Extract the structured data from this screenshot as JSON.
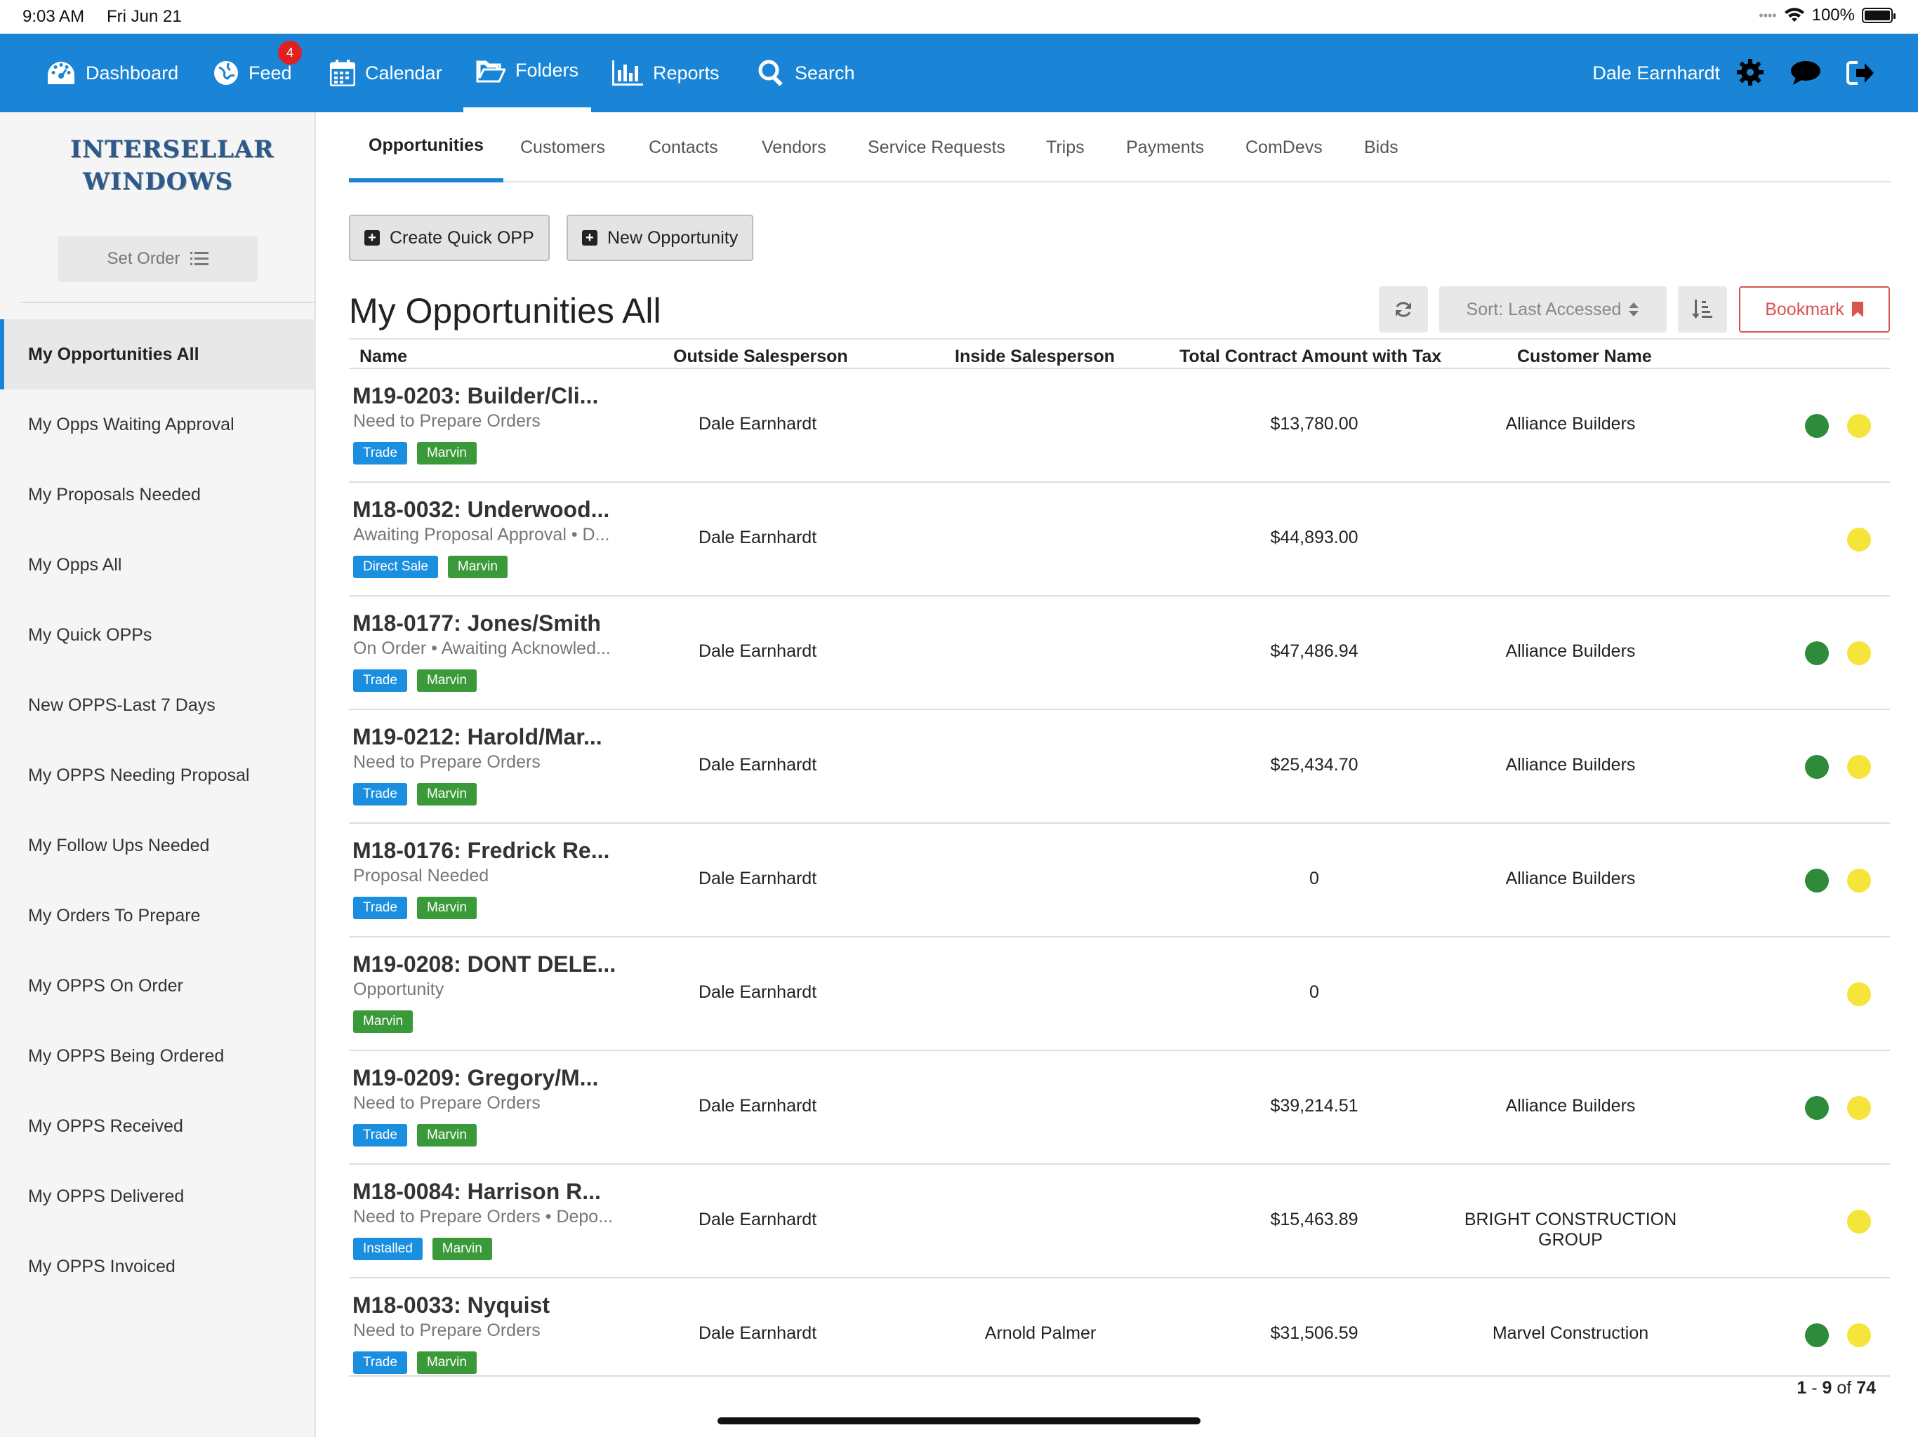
{
  "status_bar": {
    "time": "9:03 AM",
    "date": "Fri Jun 21",
    "battery": "100%"
  },
  "topnav": {
    "items": [
      {
        "label": "Dashboard",
        "icon": "dashboard-icon"
      },
      {
        "label": "Feed",
        "icon": "globe-icon",
        "badge": "4"
      },
      {
        "label": "Calendar",
        "icon": "calendar-icon"
      },
      {
        "label": "Folders",
        "icon": "folder-icon",
        "active": true
      },
      {
        "label": "Reports",
        "icon": "bar-chart-icon"
      },
      {
        "label": "Search",
        "icon": "search-icon"
      }
    ],
    "user_name": "Dale Earnhardt",
    "color": "#1a85d6"
  },
  "sidebar": {
    "logo_line1": "INTERSELLAR",
    "logo_line2": "WINDOWS",
    "set_order_label": "Set Order",
    "items": [
      "My Opportunities All",
      "My Opps Waiting Approval",
      "My Proposals Needed",
      "My Opps All",
      "My Quick OPPs",
      "New OPPS-Last 7 Days",
      "My OPPS Needing Proposal",
      "My Follow Ups Needed",
      "My Orders To Prepare",
      "My OPPS On Order",
      "My OPPS Being Ordered",
      "My OPPS Received",
      "My OPPS Delivered",
      "My OPPS Invoiced"
    ]
  },
  "tabs": [
    "Opportunities",
    "Customers",
    "Contacts",
    "Vendors",
    "Service Requests",
    "Trips",
    "Payments",
    "ComDevs",
    "Bids"
  ],
  "actions": {
    "create_quick": "Create Quick OPP",
    "new_opportunity": "New Opportunity"
  },
  "main": {
    "title": "My Opportunities All",
    "sort_label": "Sort: Last Accessed",
    "bookmark_label": "Bookmark"
  },
  "table": {
    "headers": {
      "name": "Name",
      "outside": "Outside Salesperson",
      "inside": "Inside Salesperson",
      "amount": "Total Contract Amount with Tax",
      "customer": "Customer Name"
    },
    "rows": [
      {
        "title": "M19-0203: Builder/Cli...",
        "status": "Need to Prepare Orders",
        "tag1": "Trade",
        "tag2": "Marvin",
        "outside": "Dale Earnhardt",
        "inside": "",
        "amount": "$13,780.00",
        "customer": "Alliance Builders"
      },
      {
        "title": "M18-0032: Underwood...",
        "status": "Awaiting Proposal Approval • D...",
        "tag1": "Direct Sale",
        "tag2": "Marvin",
        "outside": "Dale Earnhardt",
        "inside": "",
        "amount": "$44,893.00",
        "customer": ""
      },
      {
        "title": "M18-0177: Jones/Smith",
        "status": "On Order • Awaiting Acknowled...",
        "tag1": "Trade",
        "tag2": "Marvin",
        "outside": "Dale Earnhardt",
        "inside": "",
        "amount": "$47,486.94",
        "customer": "Alliance Builders"
      },
      {
        "title": "M19-0212: Harold/Mar...",
        "status": "Need to Prepare Orders",
        "tag1": "Trade",
        "tag2": "Marvin",
        "outside": "Dale Earnhardt",
        "inside": "",
        "amount": "$25,434.70",
        "customer": "Alliance Builders"
      },
      {
        "title": "M18-0176: Fredrick Re...",
        "status": "Proposal Needed",
        "tag1": "Trade",
        "tag2": "Marvin",
        "outside": "Dale Earnhardt",
        "inside": "",
        "amount": "0",
        "customer": "Alliance Builders"
      },
      {
        "title": "M19-0208: DONT DELE...",
        "status": "Opportunity",
        "tag1": "",
        "tag2": "Marvin",
        "outside": "Dale Earnhardt",
        "inside": "",
        "amount": "0",
        "customer": ""
      },
      {
        "title": "M19-0209: Gregory/M...",
        "status": "Need to Prepare Orders",
        "tag1": "Trade",
        "tag2": "Marvin",
        "outside": "Dale Earnhardt",
        "inside": "",
        "amount": "$39,214.51",
        "customer": "Alliance Builders"
      },
      {
        "title": "M18-0084: Harrison R...",
        "status": "Need to Prepare Orders • Depo...",
        "tag1": "Installed",
        "tag2": "Marvin",
        "outside": "Dale Earnhardt",
        "inside": "",
        "amount": "$15,463.89",
        "customer": "BRIGHT CONSTRUCTION GROUP"
      },
      {
        "title": "M18-0033: Nyquist",
        "status": "Need to Prepare Orders",
        "tag1": "Trade",
        "tag2": "Marvin",
        "outside": "Dale Earnhardt",
        "inside": "Arnold Palmer",
        "amount": "$31,506.59",
        "customer": "Marvel Construction"
      }
    ]
  },
  "pager": {
    "range_start": "1",
    "range_end": "9",
    "of_label": "of",
    "total": "74"
  }
}
